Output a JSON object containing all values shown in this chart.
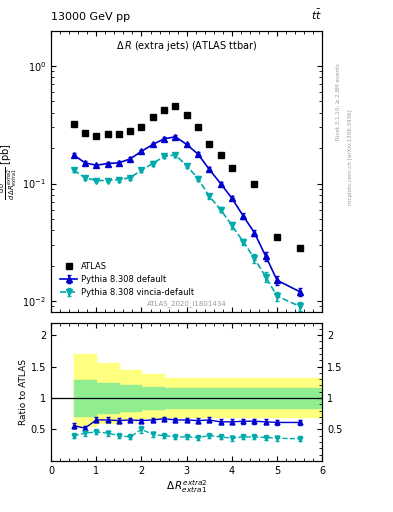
{
  "x_atlas": [
    0.5,
    0.75,
    1.0,
    1.25,
    1.5,
    1.75,
    2.0,
    2.25,
    2.5,
    2.75,
    3.0,
    3.25,
    3.5,
    3.75,
    4.0,
    4.5,
    5.0,
    5.5
  ],
  "y_atlas": [
    0.32,
    0.27,
    0.255,
    0.265,
    0.265,
    0.28,
    0.305,
    0.37,
    0.42,
    0.46,
    0.38,
    0.3,
    0.215,
    0.175,
    0.135,
    0.1,
    0.035,
    0.028
  ],
  "x_py_def": [
    0.5,
    0.75,
    1.0,
    1.25,
    1.5,
    1.75,
    2.0,
    2.25,
    2.5,
    2.75,
    3.0,
    3.25,
    3.5,
    3.75,
    4.0,
    4.25,
    4.5,
    4.75,
    5.0,
    5.5
  ],
  "y_py_def": [
    0.175,
    0.15,
    0.143,
    0.148,
    0.15,
    0.162,
    0.188,
    0.215,
    0.24,
    0.25,
    0.215,
    0.178,
    0.132,
    0.1,
    0.075,
    0.053,
    0.038,
    0.024,
    0.015,
    0.012
  ],
  "yerr_py_def": [
    0.006,
    0.005,
    0.004,
    0.004,
    0.005,
    0.005,
    0.006,
    0.007,
    0.008,
    0.008,
    0.007,
    0.006,
    0.005,
    0.004,
    0.003,
    0.003,
    0.002,
    0.002,
    0.0012,
    0.001
  ],
  "x_py_vin": [
    0.5,
    0.75,
    1.0,
    1.25,
    1.5,
    1.75,
    2.0,
    2.25,
    2.5,
    2.75,
    3.0,
    3.25,
    3.5,
    3.75,
    4.0,
    4.25,
    4.5,
    4.75,
    5.0,
    5.5
  ],
  "y_py_vin": [
    0.13,
    0.112,
    0.106,
    0.106,
    0.108,
    0.112,
    0.13,
    0.148,
    0.17,
    0.175,
    0.142,
    0.11,
    0.078,
    0.06,
    0.044,
    0.032,
    0.023,
    0.016,
    0.011,
    0.009
  ],
  "yerr_py_vin": [
    0.005,
    0.004,
    0.004,
    0.004,
    0.004,
    0.004,
    0.005,
    0.006,
    0.006,
    0.007,
    0.006,
    0.005,
    0.004,
    0.003,
    0.003,
    0.002,
    0.002,
    0.0015,
    0.001,
    0.0008
  ],
  "ratio_py_def_x": [
    0.5,
    0.75,
    1.0,
    1.25,
    1.5,
    1.75,
    2.0,
    2.25,
    2.5,
    2.75,
    3.0,
    3.25,
    3.5,
    3.75,
    4.0,
    4.25,
    4.5,
    4.75,
    5.0,
    5.5
  ],
  "ratio_py_def_y": [
    0.56,
    0.52,
    0.65,
    0.65,
    0.64,
    0.65,
    0.64,
    0.65,
    0.67,
    0.65,
    0.65,
    0.64,
    0.65,
    0.62,
    0.62,
    0.63,
    0.63,
    0.62,
    0.61,
    0.61
  ],
  "ratio_py_def_err": [
    0.04,
    0.04,
    0.04,
    0.04,
    0.04,
    0.03,
    0.03,
    0.03,
    0.03,
    0.03,
    0.03,
    0.04,
    0.04,
    0.04,
    0.04,
    0.04,
    0.04,
    0.04,
    0.04,
    0.04
  ],
  "ratio_py_vin_x": [
    0.5,
    0.75,
    1.0,
    1.25,
    1.5,
    1.75,
    2.0,
    2.25,
    2.5,
    2.75,
    3.0,
    3.25,
    3.5,
    3.75,
    4.0,
    4.25,
    4.5,
    4.75,
    5.0,
    5.5
  ],
  "ratio_py_vin_y": [
    0.4,
    0.44,
    0.46,
    0.44,
    0.4,
    0.38,
    0.5,
    0.42,
    0.4,
    0.38,
    0.38,
    0.37,
    0.4,
    0.38,
    0.36,
    0.38,
    0.38,
    0.37,
    0.36,
    0.35
  ],
  "ratio_py_vin_err": [
    0.04,
    0.04,
    0.04,
    0.04,
    0.04,
    0.04,
    0.05,
    0.04,
    0.04,
    0.04,
    0.04,
    0.04,
    0.04,
    0.04,
    0.04,
    0.04,
    0.04,
    0.04,
    0.04,
    0.04
  ],
  "band_edges": [
    0.5,
    1.0,
    1.5,
    2.0,
    2.5,
    3.0,
    3.5,
    4.0,
    4.5,
    5.0,
    5.5,
    6.0
  ],
  "band_yellow_lo": [
    0.55,
    0.6,
    0.65,
    0.68,
    0.7,
    0.7,
    0.7,
    0.7,
    0.7,
    0.7,
    0.7,
    0.7
  ],
  "band_yellow_hi": [
    1.7,
    1.55,
    1.45,
    1.38,
    1.32,
    1.32,
    1.32,
    1.32,
    1.32,
    1.32,
    1.32,
    1.32
  ],
  "band_green_lo": [
    0.72,
    0.76,
    0.8,
    0.82,
    0.84,
    0.84,
    0.84,
    0.84,
    0.84,
    0.84,
    0.84,
    0.84
  ],
  "band_green_hi": [
    1.28,
    1.24,
    1.2,
    1.18,
    1.16,
    1.16,
    1.16,
    1.16,
    1.16,
    1.16,
    1.16,
    1.16
  ],
  "color_atlas": "#000000",
  "color_py_def": "#0000cc",
  "color_py_vin": "#00aaaa",
  "color_green": "#90ee90",
  "color_yellow": "#ffff80",
  "xlim": [
    0,
    6
  ],
  "ylim_main": [
    0.008,
    2.0
  ],
  "ylim_ratio": [
    0.0,
    2.2
  ]
}
